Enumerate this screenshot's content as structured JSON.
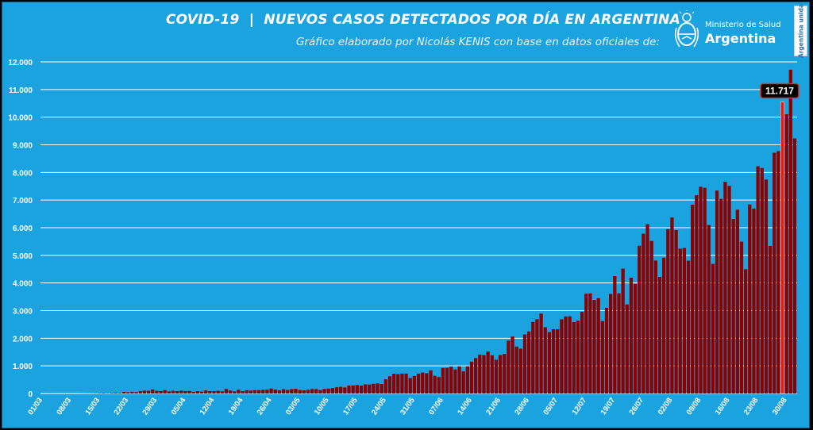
{
  "header": {
    "title": "COVID-19  |  NUEVOS CASOS DETECTADOS POR DÍA EN ARGENTINA",
    "subtitle": "Gráfico elaborado por Nicolás KENIS con base en datos oficiales de:"
  },
  "logo": {
    "top_line": "Ministerio de Salud",
    "bottom_line": "Argentina",
    "seal_icon": "coat-of-arms-icon"
  },
  "brand_tag": "Argentina unida",
  "colors": {
    "background": "#1ba3e0",
    "bar": "#8b0000",
    "bar_highlight": "#e8180c",
    "gridline": "#ffffff"
  },
  "chart_data": {
    "type": "bar",
    "title": "COVID-19  |  NUEVOS CASOS DETECTADOS POR DÍA EN ARGENTINA",
    "xlabel": "",
    "ylabel": "",
    "ylim": [
      0,
      12000
    ],
    "yticks": [
      0,
      1000,
      2000,
      3000,
      4000,
      5000,
      6000,
      7000,
      8000,
      9000,
      10000,
      11000,
      12000
    ],
    "ytick_labels": [
      "0",
      "1.000",
      "2.000",
      "3.000",
      "4.000",
      "5.000",
      "6.000",
      "7.000",
      "8.000",
      "9.000",
      "10.000",
      "11.000",
      "12.000"
    ],
    "xtick_labels": [
      "01/03",
      "08/03",
      "15/03",
      "22/03",
      "29/03",
      "05/04",
      "12/04",
      "19/04",
      "26/04",
      "03/05",
      "10/05",
      "17/05",
      "24/05",
      "31/05",
      "07/06",
      "14/06",
      "21/06",
      "28/06",
      "05/07",
      "12/07",
      "19/07",
      "26/07",
      "02/08",
      "09/08",
      "16/08",
      "23/08",
      "30/08"
    ],
    "xtick_every": 7,
    "grid": true,
    "highlight_index": 181,
    "highlight_label": "11.717",
    "values": [
      0,
      0,
      1,
      0,
      0,
      0,
      0,
      0,
      0,
      1,
      2,
      3,
      4,
      6,
      10,
      14,
      9,
      19,
      34,
      22,
      59,
      46,
      61,
      50,
      83,
      101,
      98,
      145,
      99,
      89,
      125,
      76,
      98,
      86,
      102,
      89,
      93,
      63,
      83,
      69,
      110,
      86,
      89,
      97,
      78,
      163,
      107,
      74,
      137,
      87,
      118,
      106,
      123,
      121,
      133,
      138,
      179,
      144,
      112,
      157,
      128,
      160,
      172,
      125,
      113,
      133,
      164,
      159,
      122,
      167,
      179,
      197,
      226,
      240,
      220,
      287,
      291,
      306,
      287,
      332,
      327,
      351,
      363,
      345,
      514,
      624,
      718,
      703,
      722,
      721,
      561,
      635,
      719,
      758,
      732,
      837,
      642,
      598,
      924,
      928,
      979,
      872,
      984,
      800,
      985,
      1152,
      1282,
      1410,
      1390,
      1522,
      1386,
      1222,
      1393,
      1430,
      1913,
      2062,
      1699,
      1623,
      2137,
      2246,
      2589,
      2688,
      2891,
      2397,
      2222,
      2326,
      2323,
      2686,
      2790,
      2794,
      2582,
      2635,
      2954,
      3611,
      3622,
      3384,
      3449,
      2620,
      3099,
      3604,
      4250,
      3624,
      4519,
      3223,
      4190,
      3968,
      5349,
      5782,
      6127,
      5519,
      4812,
      4220,
      4916,
      5946,
      6369,
      5911,
      5241,
      5265,
      4806,
      6831,
      7173,
      7482,
      7444,
      6098,
      4690,
      7345,
      7043,
      7663,
      7513,
      6312,
      6653,
      5495,
      4499,
      6840,
      6693,
      8225,
      8159,
      7742,
      5344,
      8713,
      8771,
      10550,
      10104,
      11717,
      9230
    ]
  }
}
